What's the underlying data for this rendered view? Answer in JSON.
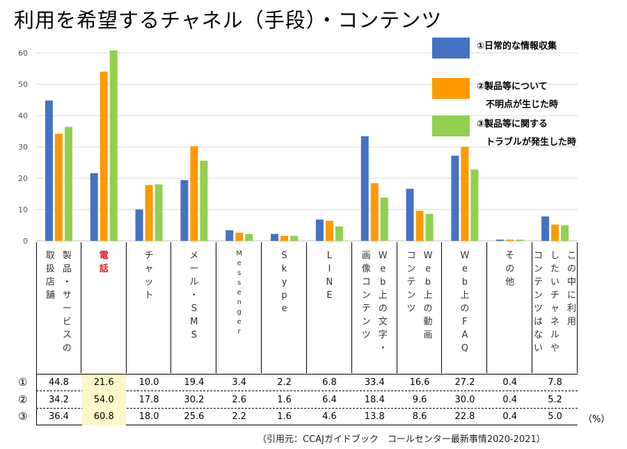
{
  "page_title": "利用を希望するチャネル（手段）・コンテンツ",
  "unit": "（%）",
  "source": "（引用元：CCAJガイドブック　コールセンター最新事情2020-2021）",
  "highlight_color": "#fdf8c6",
  "emphasis_color": "#e0201f",
  "legend": [
    {
      "marker": "①",
      "label": "①日常的な情報収集",
      "color": "#4472c4"
    },
    {
      "marker": "②",
      "label": "②製品等について\n　不明点が生じた時",
      "color": "#ff9900"
    },
    {
      "marker": "③",
      "label": "③製品等に関する\n　トラブルが発生した時",
      "color": "#92d050"
    }
  ],
  "categories": [
    {
      "label": "製品・サービスの取扱店舗",
      "columns": [
        "製品・サービスの",
        "取扱店舗"
      ],
      "highlight": false
    },
    {
      "label": "電話",
      "columns": [
        "電話"
      ],
      "highlight": true
    },
    {
      "label": "チャット",
      "columns": [
        "チャット"
      ],
      "highlight": false
    },
    {
      "label": "メール・SMS",
      "columns": [
        "メール・SMS"
      ],
      "highlight": false
    },
    {
      "label": "Messenger",
      "columns": [
        "Messenger"
      ],
      "highlight": false
    },
    {
      "label": "Skype",
      "columns": [
        "Skype"
      ],
      "highlight": false
    },
    {
      "label": "LINE",
      "columns": [
        "LINE"
      ],
      "highlight": false
    },
    {
      "label": "Web上の文字・画像コンテンツ",
      "columns": [
        "Web上の文字・",
        "画像コンテンツ"
      ],
      "highlight": false
    },
    {
      "label": "Web上の動画コンテンツ",
      "columns": [
        "Web上の動画",
        "コンテンツ"
      ],
      "highlight": false
    },
    {
      "label": "Web上のFAQ",
      "columns": [
        "Web上のFAQ"
      ],
      "highlight": false
    },
    {
      "label": "その他",
      "columns": [
        "その他"
      ],
      "highlight": false
    },
    {
      "label": "この中に利用したいチャネルやコンテンツはない",
      "columns": [
        "この中に利用",
        "したいチャネルや",
        "コンテンツはない"
      ],
      "highlight": false
    }
  ],
  "table_rows": [
    {
      "marker": "①",
      "cells": [
        "44.8",
        "21.6",
        "10.0",
        "19.4",
        "3.4",
        "2.2",
        "6.8",
        "33.4",
        "16.6",
        "27.2",
        "0.4",
        "7.8"
      ]
    },
    {
      "marker": "②",
      "cells": [
        "34.2",
        "54.0",
        "17.8",
        "30.2",
        "2.6",
        "1.6",
        "6.4",
        "18.4",
        "9.6",
        "30.0",
        "0.4",
        "5.2"
      ]
    },
    {
      "marker": "③",
      "cells": [
        "36.4",
        "60.8",
        "18.0",
        "25.6",
        "2.2",
        "1.6",
        "4.6",
        "13.8",
        "8.6",
        "22.8",
        "0.4",
        "5.0"
      ]
    }
  ],
  "chart_data": {
    "type": "bar",
    "categories": [
      "製品・サービスの取扱店舗",
      "電話",
      "チャット",
      "メール・SMS",
      "Messenger",
      "Skype",
      "LINE",
      "Web上の文字・画像コンテンツ",
      "Web上の動画コンテンツ",
      "Web上のFAQ",
      "その他",
      "この中に利用したいチャネルやコンテンツはない"
    ],
    "series": [
      {
        "name": "①日常的な情報収集",
        "color": "#4472c4",
        "values": [
          44.8,
          21.6,
          10.0,
          19.4,
          3.4,
          2.2,
          6.8,
          33.4,
          16.6,
          27.2,
          0.4,
          7.8
        ]
      },
      {
        "name": "②製品等について不明点が生じた時",
        "color": "#ff9900",
        "values": [
          34.2,
          54.0,
          17.8,
          30.2,
          2.6,
          1.6,
          6.4,
          18.4,
          9.6,
          30.0,
          0.4,
          5.2
        ]
      },
      {
        "name": "③製品等に関するトラブルが発生した時",
        "color": "#92d050",
        "values": [
          36.4,
          60.8,
          18.0,
          25.6,
          2.2,
          1.6,
          4.6,
          13.8,
          8.6,
          22.8,
          0.4,
          5.0
        ]
      }
    ],
    "ylim": [
      0,
      60
    ],
    "yticks": [
      0,
      10,
      20,
      30,
      40,
      50,
      60
    ],
    "grid": true,
    "legend_position": "top-right"
  }
}
